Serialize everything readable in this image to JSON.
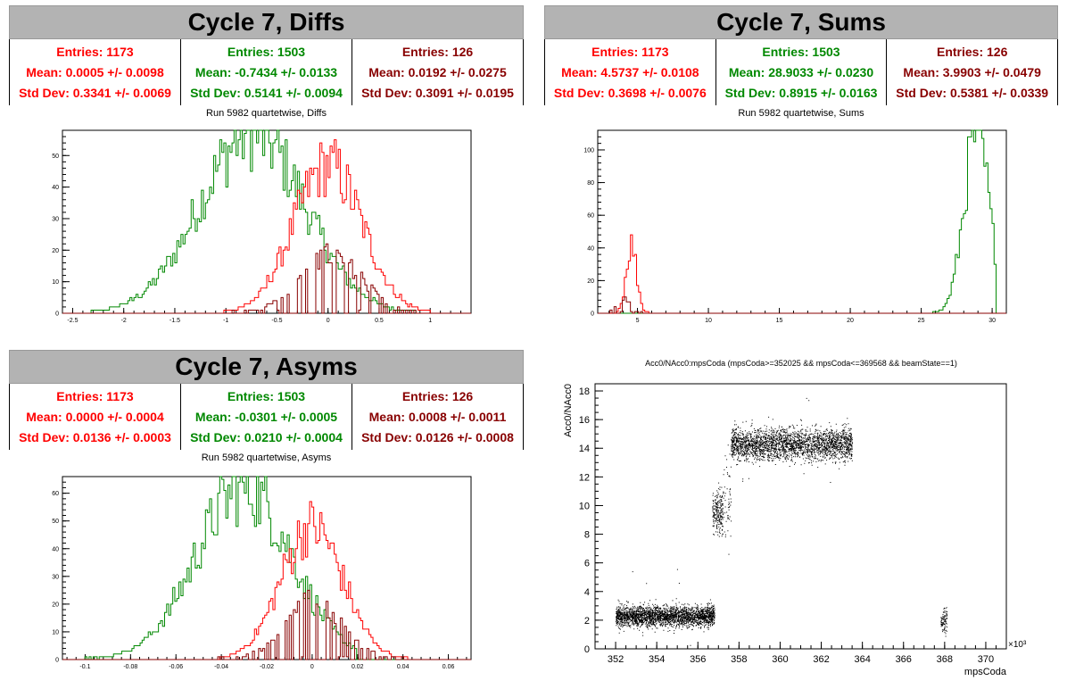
{
  "panels": {
    "diffs": {
      "title": "Cycle 7, Diffs",
      "subtitle": "Run 5982 quartetwise, Diffs",
      "stats": [
        {
          "entries": "Entries: 1173",
          "mean": "Mean: 0.0005 +/- 0.0098",
          "std": "Std Dev: 0.3341 +/- 0.0069",
          "color": "#ff0000"
        },
        {
          "entries": "Entries: 1503",
          "mean": "Mean: -0.7434 +/- 0.0133",
          "std": "Std Dev: 0.5141 +/- 0.0094",
          "color": "#008800"
        },
        {
          "entries": "Entries: 126",
          "mean": "Mean: 0.0192 +/- 0.0275",
          "std": "Std Dev: 0.3091 +/- 0.0195",
          "color": "#880000"
        }
      ]
    },
    "sums": {
      "title": "Cycle 7, Sums",
      "subtitle": "Run 5982 quartetwise, Sums",
      "stats": [
        {
          "entries": "Entries: 1173",
          "mean": "Mean: 4.5737 +/- 0.0108",
          "std": "Std Dev: 0.3698 +/- 0.0076",
          "color": "#ff0000"
        },
        {
          "entries": "Entries: 1503",
          "mean": "Mean: 28.9033 +/- 0.0230",
          "std": "Std Dev: 0.8915 +/- 0.0163",
          "color": "#008800"
        },
        {
          "entries": "Entries: 126",
          "mean": "Mean: 3.9903 +/- 0.0479",
          "std": "Std Dev: 0.5381 +/- 0.0339",
          "color": "#880000"
        }
      ]
    },
    "asyms": {
      "title": "Cycle 7, Asyms",
      "subtitle": "Run 5982 quartetwise, Asyms",
      "stats": [
        {
          "entries": "Entries: 1173",
          "mean": "Mean: 0.0000 +/- 0.0004",
          "std": "Std Dev: 0.0136 +/- 0.0003",
          "color": "#ff0000"
        },
        {
          "entries": "Entries: 1503",
          "mean": "Mean: -0.0301 +/- 0.0005",
          "std": "Std Dev: 0.0210 +/- 0.0004",
          "color": "#008800"
        },
        {
          "entries": "Entries: 126",
          "mean": "Mean: 0.0008 +/- 0.0011",
          "std": "Std Dev: 0.0126 +/- 0.0008",
          "color": "#880000"
        }
      ]
    },
    "scatter": {
      "title": "Acc0/NAcc0:mpsCoda (mpsCoda>=352025 && mpsCoda<=369568 && beamState==1)"
    }
  },
  "chart_data": [
    {
      "type": "histogram",
      "name": "diffs",
      "xlim": [
        -2.6,
        1.4
      ],
      "ylim": [
        0,
        58
      ],
      "xticks": [
        -2.5,
        -2,
        -1.5,
        -1,
        -0.5,
        0,
        0.5,
        1
      ],
      "xticklabels": [
        "-2.5",
        "-2",
        "-1.5",
        "-1",
        "-0.5",
        "0",
        "0.5",
        "1"
      ],
      "yticks": [
        0,
        10,
        20,
        30,
        40,
        50
      ],
      "series": [
        {
          "color": "#008800",
          "mean": -0.7434,
          "std": 0.5141,
          "peak": 57,
          "range": [
            -2.4,
            0.9
          ]
        },
        {
          "color": "#ff0000",
          "mean": 0.0005,
          "std": 0.3341,
          "peak": 47,
          "range": [
            -1.2,
            1.1
          ]
        },
        {
          "color": "#880000",
          "mean": 0.0192,
          "std": 0.3091,
          "peak": 13,
          "range": [
            -1.2,
            1.1
          ]
        }
      ]
    },
    {
      "type": "histogram",
      "name": "sums",
      "xlim": [
        2.2,
        31.0
      ],
      "ylim": [
        0,
        112
      ],
      "xticks": [
        5,
        10,
        15,
        20,
        25,
        30
      ],
      "xticklabels": [
        "5",
        "10",
        "15",
        "20",
        "25",
        "30"
      ],
      "yticks": [
        0,
        20,
        40,
        60,
        80,
        100
      ],
      "series": [
        {
          "color": "#008800",
          "mean": 28.9033,
          "std": 0.8915,
          "peak": 110,
          "range": [
            20.9,
            30.3
          ]
        },
        {
          "color": "#ff0000",
          "mean": 4.5737,
          "std": 0.3698,
          "peak": 42,
          "range": [
            3.5,
            5.8
          ]
        },
        {
          "color": "#880000",
          "mean": 3.9903,
          "std": 0.5381,
          "peak": 6,
          "range": [
            2.8,
            5.8
          ]
        }
      ]
    },
    {
      "type": "histogram",
      "name": "asyms",
      "xlim": [
        -0.11,
        0.07
      ],
      "ylim": [
        0,
        66
      ],
      "xticks": [
        -0.1,
        -0.08,
        -0.06,
        -0.04,
        -0.02,
        0,
        0.02,
        0.04,
        0.06
      ],
      "xticklabels": [
        "-0.1",
        "-0.08",
        "-0.06",
        "-0.04",
        "-0.02",
        "0",
        "0.02",
        "0.04",
        "0.06"
      ],
      "yticks": [
        0,
        10,
        20,
        30,
        40,
        50,
        60
      ],
      "series": [
        {
          "color": "#008800",
          "mean": -0.0301,
          "std": 0.021,
          "peak": 62,
          "range": [
            -0.1,
            0.02
          ]
        },
        {
          "color": "#ff0000",
          "mean": 0.0,
          "std": 0.0136,
          "peak": 48,
          "range": [
            -0.05,
            0.06
          ]
        },
        {
          "color": "#880000",
          "mean": 0.0008,
          "std": 0.0126,
          "peak": 15,
          "range": [
            -0.05,
            0.05
          ]
        }
      ]
    },
    {
      "type": "scatter",
      "name": "acc0_vs_mpscoda",
      "xlabel": "mpsCoda",
      "ylabel": "Acc0/NAcc0",
      "xmultiplier": "×10³",
      "xlim": [
        351,
        371
      ],
      "ylim": [
        0,
        18.5
      ],
      "xticks": [
        352,
        354,
        356,
        358,
        360,
        362,
        364,
        366,
        368,
        370
      ],
      "xticklabels": [
        "352",
        "354",
        "356",
        "358",
        "360",
        "362",
        "364",
        "366",
        "368",
        "370"
      ],
      "yticks": [
        0,
        2,
        4,
        6,
        8,
        10,
        12,
        14,
        16,
        18
      ],
      "yticklabels": [
        "0",
        "2",
        "4",
        "6",
        "8",
        "10",
        "12",
        "14",
        "16",
        "18"
      ],
      "clusters": [
        {
          "x": [
            352.0,
            356.8
          ],
          "y_center": 2.3,
          "y_spread": 0.35,
          "n": 2600
        },
        {
          "x": [
            356.7,
            357.2
          ],
          "y_center": 9.5,
          "y_spread": 0.7,
          "n": 220
        },
        {
          "x": [
            357.2,
            357.6
          ],
          "y_center": 11.0,
          "y_spread": 1.5,
          "n": 60
        },
        {
          "x": [
            357.6,
            363.5
          ],
          "y_center": 14.3,
          "y_spread": 0.55,
          "n": 3400
        },
        {
          "x": [
            367.8,
            368.1
          ],
          "y_center": 1.9,
          "y_spread": 0.4,
          "n": 90
        }
      ]
    }
  ]
}
